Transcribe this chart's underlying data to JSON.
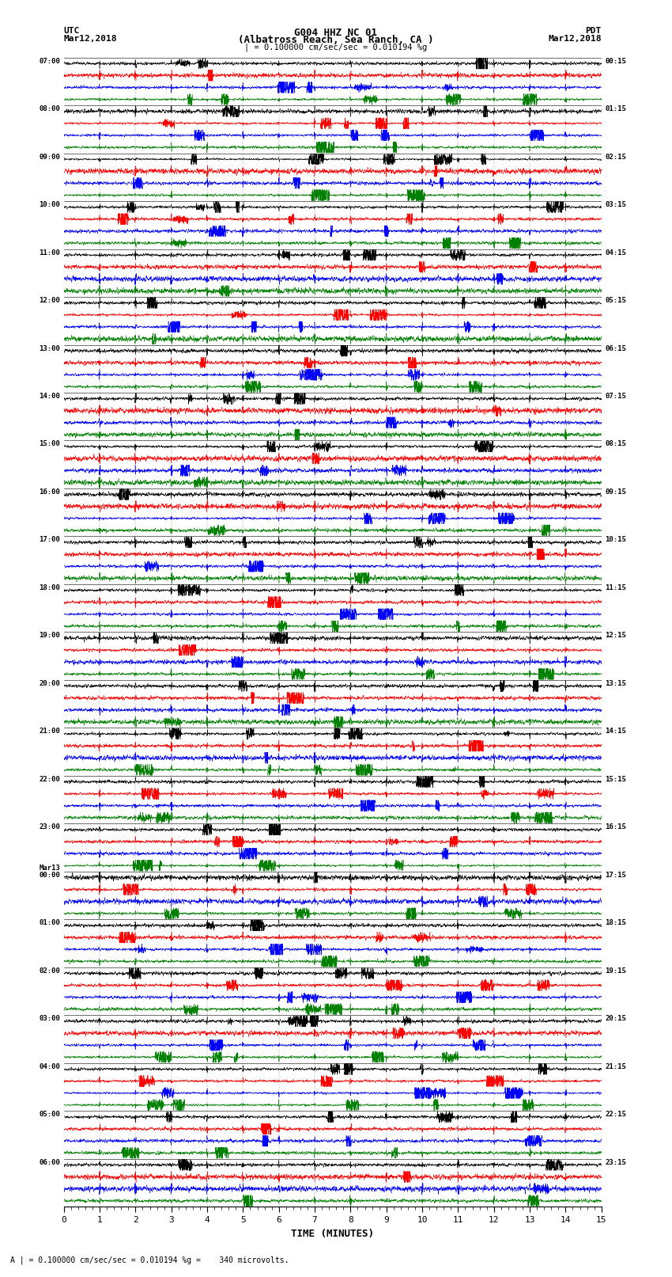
{
  "title_line1": "G004 HHZ NC 01",
  "title_line2": "(Albatross Reach, Sea Ranch, CA )",
  "left_header1": "UTC",
  "left_header2": "Mar12,2018",
  "right_header1": "PDT",
  "right_header2": "Mar12,2018",
  "scale_text": "| = 0.100000 cm/sec/sec = 0.010194 %g",
  "bottom_text": "A | = 0.100000 cm/sec/sec = 0.010194 %g =    340 microvolts.",
  "xlabel": "TIME (MINUTES)",
  "bg_color": "#ffffff",
  "trace_colors": [
    "black",
    "red",
    "blue",
    "green"
  ],
  "utc_labels": [
    "07:00",
    "08:00",
    "09:00",
    "10:00",
    "11:00",
    "12:00",
    "13:00",
    "14:00",
    "15:00",
    "16:00",
    "17:00",
    "18:00",
    "19:00",
    "20:00",
    "21:00",
    "22:00",
    "23:00",
    "Mar13\n00:00",
    "01:00",
    "02:00",
    "03:00",
    "04:00",
    "05:00",
    "06:00"
  ],
  "pdt_labels": [
    "00:15",
    "01:15",
    "02:15",
    "03:15",
    "04:15",
    "05:15",
    "06:15",
    "07:15",
    "08:15",
    "09:15",
    "10:15",
    "11:15",
    "12:15",
    "13:15",
    "14:15",
    "15:15",
    "16:15",
    "17:15",
    "18:15",
    "19:15",
    "20:15",
    "21:15",
    "22:15",
    "23:15"
  ],
  "xmin": 0,
  "xmax": 15,
  "xticks": [
    0,
    1,
    2,
    3,
    4,
    5,
    6,
    7,
    8,
    9,
    10,
    11,
    12,
    13,
    14,
    15
  ],
  "num_rows": 24,
  "traces_per_row": 4,
  "noise_scale": [
    0.18,
    0.28,
    0.2,
    0.15
  ],
  "fig_width": 8.5,
  "fig_height": 16.13,
  "dpi": 100
}
